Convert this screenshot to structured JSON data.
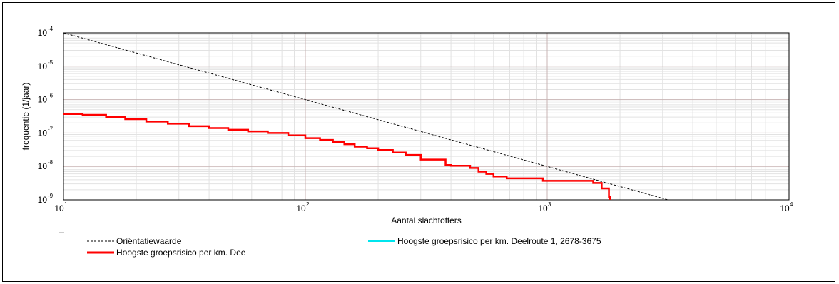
{
  "chart_data": {
    "type": "line",
    "xlabel": "Aantal slachtoffers",
    "ylabel": "frequentie (1/jaar)",
    "xscale": "log",
    "yscale": "log",
    "xlim": [
      10,
      10000
    ],
    "ylim": [
      1e-09,
      0.0001
    ],
    "grid": true,
    "x_ticks": [
      {
        "base": "10",
        "exp": "1"
      },
      {
        "base": "10",
        "exp": "2"
      },
      {
        "base": "10",
        "exp": "3"
      },
      {
        "base": "10",
        "exp": "4"
      }
    ],
    "y_ticks": [
      {
        "base": "10",
        "exp": "-9"
      },
      {
        "base": "10",
        "exp": "-8"
      },
      {
        "base": "10",
        "exp": "-7"
      },
      {
        "base": "10",
        "exp": "-6"
      },
      {
        "base": "10",
        "exp": "-5"
      },
      {
        "base": "10",
        "exp": "-4"
      }
    ],
    "legend_position": "bottom",
    "series": [
      {
        "name": "Oriëntatiewaarde",
        "color": "#000000",
        "style": "dashed",
        "x": [
          10,
          3162
        ],
        "y": [
          0.0001,
          1e-09
        ]
      },
      {
        "name": "Hoogste groepsrisico per km. Deelroute 1, 2678-3675",
        "color": "#00e5ee",
        "style": "solid",
        "x": [],
        "y": []
      },
      {
        "name": "Hoogste groepsrisico per km. Dee",
        "color": "#ff0000",
        "style": "step",
        "x": [
          10,
          12,
          15,
          18,
          22,
          27,
          33,
          40,
          48,
          58,
          70,
          85,
          100,
          115,
          130,
          145,
          160,
          180,
          200,
          230,
          260,
          300,
          380,
          400,
          480,
          520,
          560,
          600,
          680,
          960,
          1550,
          1680,
          1700,
          1800,
          1820
        ],
        "y": [
          3.7e-07,
          3.5e-07,
          3e-07,
          2.6e-07,
          2.2e-07,
          1.9e-07,
          1.6e-07,
          1.4e-07,
          1.25e-07,
          1.12e-07,
          1e-07,
          8.5e-08,
          7e-08,
          6.2e-08,
          5.4e-08,
          4.6e-08,
          3.9e-08,
          3.5e-08,
          3.1e-08,
          2.6e-08,
          2.2e-08,
          1.6e-08,
          1.1e-08,
          1.05e-08,
          9e-09,
          7e-09,
          6e-09,
          5e-09,
          4.4e-09,
          3.7e-09,
          3.2e-09,
          2.2e-09,
          2.2e-09,
          1.2e-09,
          1e-09
        ]
      }
    ]
  }
}
